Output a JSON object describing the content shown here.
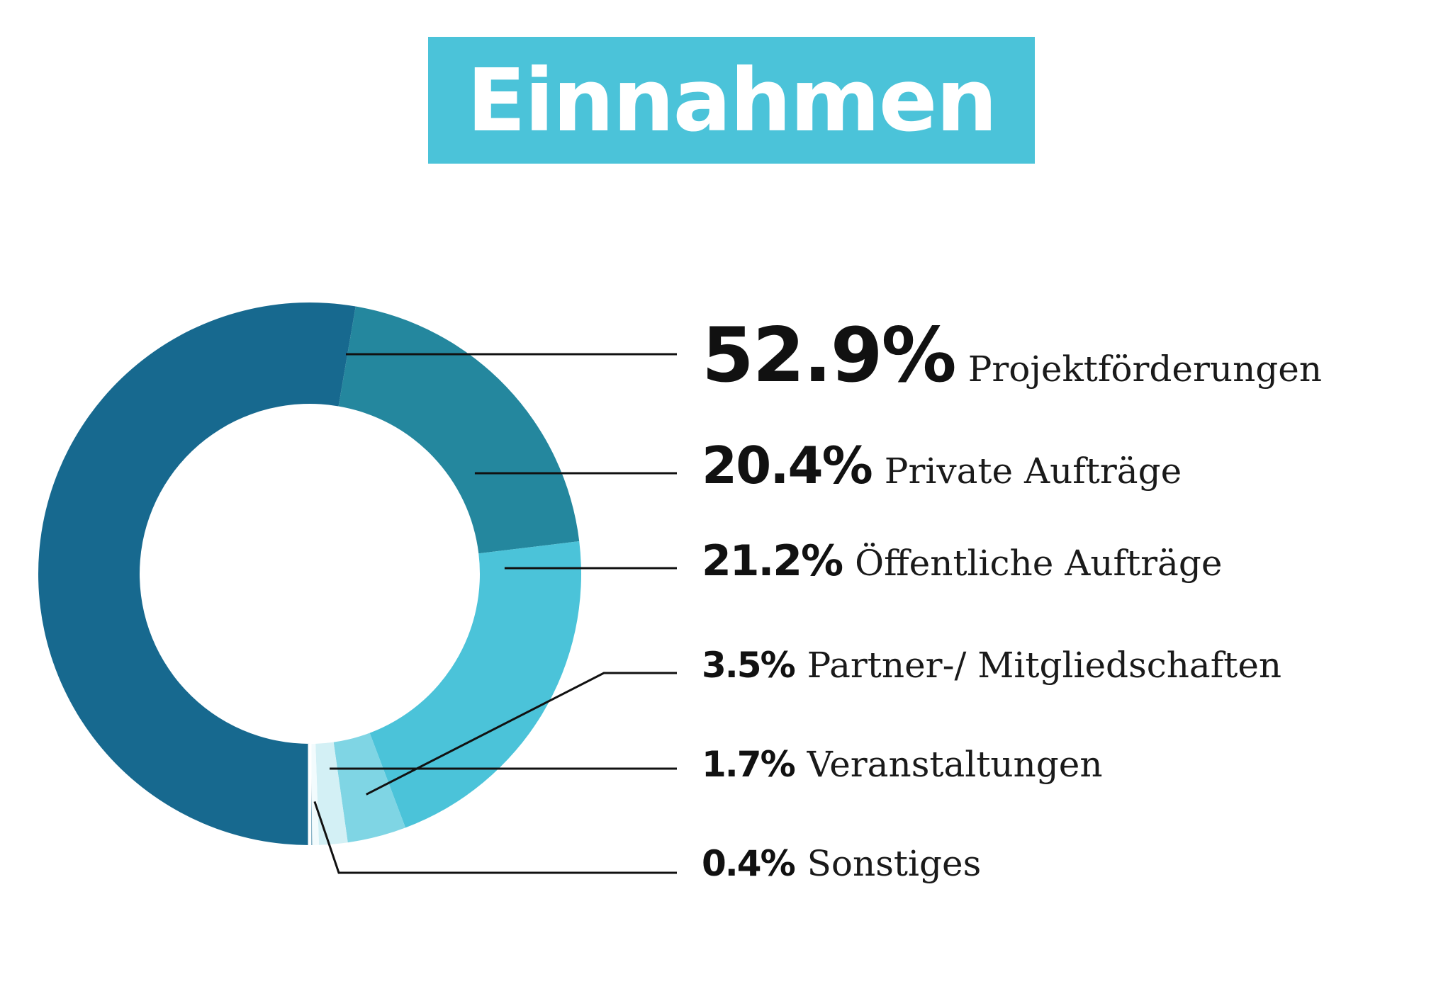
{
  "chart_data": {
    "type": "pie",
    "title": "Einnahmen",
    "donut": true,
    "slices": [
      {
        "label": "Projektförderungen",
        "value": 52.9,
        "display": "52.9%",
        "color": "#17698F"
      },
      {
        "label": "Private Aufträge",
        "value": 20.4,
        "display": "20.4%",
        "color": "#24879E"
      },
      {
        "label": "Öffentliche Aufträge",
        "value": 21.2,
        "display": "21.2%",
        "color": "#4BC3D9"
      },
      {
        "label": "Partner-/ Mitgliedschaften",
        "value": 3.5,
        "display": "3.5%",
        "color": "#7FD5E4"
      },
      {
        "label": "Veranstaltungen",
        "value": 1.7,
        "display": "1.7%",
        "color": "#D3F0F5"
      },
      {
        "label": "Sonstiges",
        "value": 0.4,
        "display": "0.4%",
        "color": "#F2FBFD"
      }
    ],
    "legend_position": "right"
  }
}
